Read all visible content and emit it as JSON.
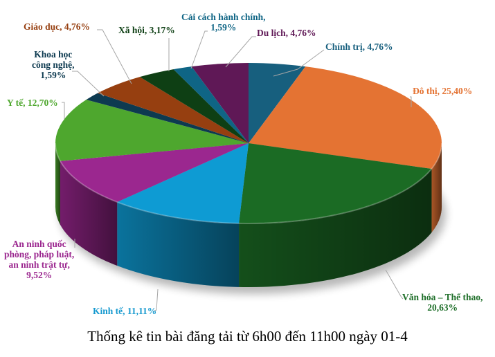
{
  "chart_data": {
    "type": "pie",
    "style": "3d-pie",
    "title": "Thống kê tin bài đăng tải từ 6h00 đến 11h00 ngày 01-4",
    "start_angle_deg": 0,
    "direction": "clockwise",
    "slices": [
      {
        "label": "Chính trị",
        "value": 4.76,
        "display": "Chính trị, 4,76%",
        "color": "#175f7e",
        "label_color": "#175f7e"
      },
      {
        "label": "Đô thị",
        "value": 25.4,
        "display": "Đô thị, 25,40%",
        "color": "#e47333",
        "label_color": "#e47333"
      },
      {
        "label": "Văn hóa – Thể thao",
        "value": 20.63,
        "display": "Văn hóa – Thể thao, 20,63%",
        "color": "#1b6b24",
        "label_color": "#1f6f2a"
      },
      {
        "label": "Kinh tế",
        "value": 11.11,
        "display": "Kinh tế, 11,11%",
        "color": "#0e9bd3",
        "label_color": "#1599cf"
      },
      {
        "label": "An ninh quốc phòng, pháp luật, an ninh trật tự",
        "value": 9.52,
        "display": "An ninh quốc phòng, pháp luật, an ninh trật tự, 9,52%",
        "color": "#9b278f",
        "label_color": "#9b278f"
      },
      {
        "label": "Y tế",
        "value": 12.7,
        "display": "Y tế, 12,70%",
        "color": "#4ea72e",
        "label_color": "#4ea72e"
      },
      {
        "label": "Khoa học công nghệ",
        "value": 1.59,
        "display": "Khoa học công nghệ, 1,59%",
        "color": "#0d3a50",
        "label_color": "#0d3a50"
      },
      {
        "label": "Giáo dục",
        "value": 4.76,
        "display": "Giáo dục, 4,76%",
        "color": "#963f10",
        "label_color": "#963f10"
      },
      {
        "label": "Xã hội",
        "value": 3.17,
        "display": "Xã hội, 3,17%",
        "color": "#0e3f14",
        "label_color": "#0e3f14"
      },
      {
        "label": "Cải cách hành chính",
        "value": 1.59,
        "display": "Cải cách hành chính, 1,59%",
        "color": "#0f6585",
        "label_color": "#0f6585"
      },
      {
        "label": "Du lịch",
        "value": 4.76,
        "display": "Du lịch, 4,76%",
        "color": "#5f1856",
        "label_color": "#5f1856"
      }
    ],
    "legend": "none",
    "data_labels": "category, percentage with leader lines"
  },
  "labels": {
    "chinh_tri": [
      "Chính trị, 4,76%"
    ],
    "do_thi": [
      "Đô thị, 25,40%"
    ],
    "van_hoa": [
      "Văn hóa – Thể thao,",
      "20,63%"
    ],
    "kinh_te": [
      "Kinh tế, 11,11%"
    ],
    "an_ninh": [
      "An ninh quốc",
      "phòng, pháp luật,",
      "an ninh trật tự,",
      "9,52%"
    ],
    "y_te": [
      "Y tế, 12,70%"
    ],
    "khcn": [
      "Khoa học",
      "công nghệ,",
      "1,59%"
    ],
    "giao_duc": [
      "Giáo dục, 4,76%"
    ],
    "xa_hoi": [
      "Xã hội, 3,17%"
    ],
    "cchc": [
      "Cải cách hành chính,",
      "1,59%"
    ],
    "du_lich": [
      "Du lịch, 4,76%"
    ]
  },
  "caption": "Thống kê tin bài đăng tải từ 6h00 đến 11h00 ngày 01-4"
}
